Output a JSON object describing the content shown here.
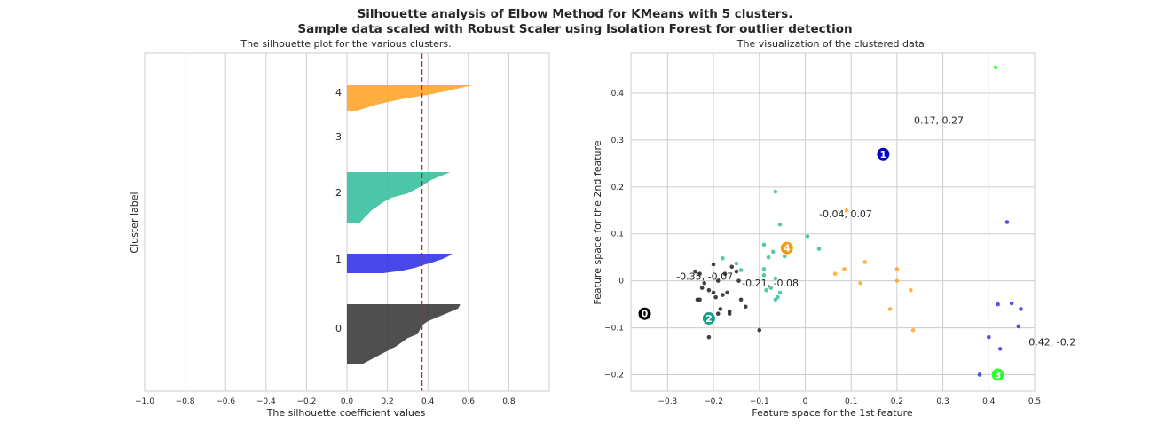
{
  "figure": {
    "title_line1": "Silhouette analysis of Elbow Method for KMeans with 5 clusters.",
    "title_line2": "Sample data scaled with Robust Scaler using Isolation Forest for outlier detection"
  },
  "chart_data": [
    {
      "type": "area",
      "title": "The silhouette plot for the various clusters.",
      "xlabel": "The silhouette coefficient values",
      "ylabel": "Cluster label",
      "xlim": [
        -1.0,
        1.0
      ],
      "xticks": [
        "−1.0",
        "−0.8",
        "−0.6",
        "−0.4",
        "−0.2",
        "0.0",
        "0.2",
        "0.4",
        "0.6",
        "0.8"
      ],
      "xtick_values": [
        -1.0,
        -0.8,
        -0.6,
        -0.4,
        -0.2,
        0.0,
        0.2,
        0.4,
        0.6,
        0.8
      ],
      "grid": true,
      "average_silhouette": 0.37,
      "average_line_color": "#cc2222",
      "clusters": [
        {
          "label": "0",
          "color": "#3c3c3c",
          "profile": [
            0.56,
            0.55,
            0.5,
            0.45,
            0.4,
            0.37,
            0.36,
            0.35,
            0.3,
            0.27,
            0.24,
            0.2,
            0.16,
            0.12,
            0.08
          ]
        },
        {
          "label": "1",
          "color": "#3535e8",
          "profile": [
            0.52,
            0.5,
            0.47,
            0.43,
            0.38,
            0.34,
            0.28,
            0.18
          ]
        },
        {
          "label": "2",
          "color": "#38c09e",
          "profile": [
            0.51,
            0.46,
            0.41,
            0.38,
            0.34,
            0.3,
            0.22,
            0.18,
            0.15,
            0.12,
            0.1,
            0.08,
            0.06
          ]
        },
        {
          "label": "3",
          "color": "#ffffff",
          "profile": []
        },
        {
          "label": "4",
          "color": "#ffa52a",
          "profile": [
            0.62,
            0.55,
            0.48,
            0.4,
            0.3,
            0.22,
            0.15,
            0.1,
            0.05
          ]
        }
      ]
    },
    {
      "type": "scatter",
      "title": "The visualization of the clustered data.",
      "xlabel": "Feature space for the 1st feature",
      "ylabel": "Feature space for the 2nd feature",
      "xlim": [
        -0.38,
        0.5
      ],
      "ylim": [
        -0.235,
        0.485
      ],
      "xticks": [
        "−0.3",
        "−0.2",
        "−0.1",
        "0",
        "0.1",
        "0.2",
        "0.3",
        "0.4",
        "0.5"
      ],
      "xtick_values": [
        -0.3,
        -0.2,
        -0.1,
        0,
        0.1,
        0.2,
        0.3,
        0.4,
        0.5
      ],
      "yticks": [
        "−0.2",
        "−0.1",
        "0",
        "0.1",
        "0.2",
        "0.3",
        "0.4"
      ],
      "ytick_values": [
        -0.2,
        -0.1,
        0,
        0.1,
        0.2,
        0.3,
        0.4
      ],
      "grid": true,
      "series": [
        {
          "color": "#222222",
          "points": [
            [
              -0.24,
              0.02
            ],
            [
              -0.23,
              0.015
            ],
            [
              -0.2,
              0.035
            ],
            [
              -0.19,
              0.0
            ],
            [
              -0.175,
              0.015
            ],
            [
              -0.16,
              0.03
            ],
            [
              -0.15,
              0.02
            ],
            [
              -0.22,
              -0.005
            ],
            [
              -0.225,
              -0.015
            ],
            [
              -0.21,
              -0.02
            ],
            [
              -0.2,
              -0.025
            ],
            [
              -0.195,
              -0.035
            ],
            [
              -0.18,
              -0.03
            ],
            [
              -0.17,
              -0.025
            ],
            [
              -0.14,
              -0.04
            ],
            [
              -0.165,
              -0.065
            ],
            [
              -0.165,
              -0.07
            ],
            [
              -0.185,
              -0.06
            ],
            [
              -0.19,
              -0.07
            ],
            [
              -0.13,
              -0.055
            ],
            [
              -0.235,
              -0.04
            ],
            [
              -0.23,
              -0.04
            ],
            [
              -0.21,
              -0.12
            ],
            [
              -0.1,
              -0.105
            ],
            [
              -0.145,
              0.0
            ]
          ]
        },
        {
          "color": "#3535e8",
          "points": [
            [
              0.44,
              0.125
            ],
            [
              0.42,
              -0.05
            ],
            [
              0.45,
              -0.048
            ],
            [
              0.47,
              -0.06
            ],
            [
              0.465,
              -0.097
            ],
            [
              0.4,
              -0.12
            ],
            [
              0.425,
              -0.145
            ],
            [
              0.38,
              -0.2
            ]
          ]
        },
        {
          "color": "#38c09e",
          "points": [
            [
              -0.065,
              0.19
            ],
            [
              -0.055,
              0.12
            ],
            [
              0.005,
              0.095
            ],
            [
              -0.09,
              0.077
            ],
            [
              0.03,
              0.068
            ],
            [
              -0.07,
              0.062
            ],
            [
              -0.045,
              0.052
            ],
            [
              -0.08,
              0.05
            ],
            [
              -0.18,
              0.048
            ],
            [
              -0.15,
              0.037
            ],
            [
              -0.14,
              0.023
            ],
            [
              -0.09,
              0.025
            ],
            [
              -0.09,
              0.012
            ],
            [
              -0.065,
              0.005
            ],
            [
              -0.075,
              -0.015
            ],
            [
              -0.085,
              -0.02
            ],
            [
              -0.055,
              -0.025
            ],
            [
              -0.06,
              -0.035
            ],
            [
              -0.065,
              -0.04
            ]
          ]
        },
        {
          "color": "#2bff2b",
          "points": [
            [
              0.415,
              0.455
            ]
          ]
        },
        {
          "color": "#ffa52a",
          "points": [
            [
              0.09,
              0.15
            ],
            [
              0.13,
              0.04
            ],
            [
              0.085,
              0.025
            ],
            [
              0.2,
              0.025
            ],
            [
              0.065,
              0.015
            ],
            [
              0.2,
              0.0
            ],
            [
              0.12,
              -0.005
            ],
            [
              0.23,
              -0.02
            ],
            [
              0.185,
              -0.06
            ],
            [
              0.235,
              -0.105
            ]
          ]
        }
      ],
      "centers": [
        {
          "label": "0",
          "x": -0.35,
          "y": -0.07,
          "color": "#000000"
        },
        {
          "label": "1",
          "x": 0.17,
          "y": 0.27,
          "color": "#0000c8"
        },
        {
          "label": "2",
          "x": -0.21,
          "y": -0.08,
          "color": "#159f85"
        },
        {
          "label": "3",
          "x": 0.42,
          "y": -0.2,
          "color": "#2bff2b"
        },
        {
          "label": "4",
          "x": -0.04,
          "y": 0.07,
          "color": "#f49b12"
        }
      ],
      "annotations": [
        {
          "text": "0.17, 0.27",
          "x": 0.237,
          "y": 0.335
        },
        {
          "text": "-0.04, 0.07",
          "x": 0.03,
          "y": 0.135
        },
        {
          "text": "-0.35, -0.07",
          "x": -0.281,
          "y": 0.002
        },
        {
          "text": "-0.21, -0.08",
          "x": -0.138,
          "y": -0.012
        },
        {
          "text": "0.42, -0.2",
          "x": 0.487,
          "y": -0.138
        }
      ]
    }
  ]
}
